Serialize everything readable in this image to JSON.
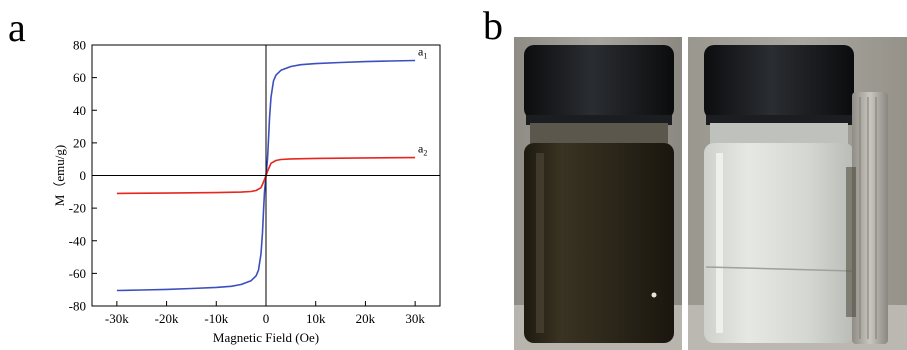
{
  "panel_a": {
    "label": "a"
  },
  "panel_b": {
    "label": "b"
  },
  "chart_data": {
    "type": "line",
    "xlabel": "Magnetic Field (Oe)",
    "ylabel": "M（emu/g)",
    "xlim": [
      -35000,
      35000
    ],
    "ylim": [
      -80,
      80
    ],
    "x_ticks": [
      -30000,
      -20000,
      -10000,
      0,
      10000,
      20000,
      30000
    ],
    "x_tick_labels": [
      "-30k",
      "-20k",
      "-10k",
      "0",
      "10k",
      "20k",
      "30k"
    ],
    "y_ticks": [
      -80,
      -60,
      -40,
      -20,
      0,
      20,
      40,
      60,
      80
    ],
    "y_tick_labels": [
      "-80",
      "-60",
      "-40",
      "-20",
      "0",
      "20",
      "40",
      "60",
      "80"
    ],
    "grid": false,
    "series": [
      {
        "name": "a1",
        "label_main": "a",
        "label_sub": "1",
        "color": "#3b4fbf",
        "x": [
          -30000,
          -25000,
          -20000,
          -15000,
          -10000,
          -7000,
          -5000,
          -3000,
          -2000,
          -1500,
          -1000,
          -700,
          -500,
          -300,
          0,
          300,
          500,
          700,
          1000,
          1500,
          2000,
          3000,
          5000,
          7000,
          10000,
          15000,
          20000,
          25000,
          30000
        ],
        "y": [
          -70.5,
          -70.2,
          -69.8,
          -69.3,
          -68.6,
          -67.9,
          -66.8,
          -64.5,
          -61.5,
          -58,
          -48,
          -35,
          -22,
          -10,
          0,
          10,
          22,
          35,
          48,
          58,
          61.5,
          64.5,
          66.8,
          67.9,
          68.6,
          69.3,
          69.8,
          70.2,
          70.5
        ]
      },
      {
        "name": "a2",
        "label_main": "a",
        "label_sub": "2",
        "color": "#e8261f",
        "x": [
          -30000,
          -20000,
          -10000,
          -5000,
          -3000,
          -2000,
          -1000,
          -500,
          0,
          500,
          1000,
          2000,
          3000,
          5000,
          10000,
          20000,
          30000
        ],
        "y": [
          -11,
          -10.8,
          -10.5,
          -10.2,
          -9.8,
          -9.2,
          -7.5,
          -4,
          0,
          4,
          7.5,
          9.2,
          9.8,
          10.2,
          10.5,
          10.8,
          11
        ]
      }
    ]
  },
  "photos": {
    "left": {
      "cap_color": "#15171a",
      "liquid_color": "#2a2418",
      "background": "#9a9890"
    },
    "right": {
      "cap_color": "#15171a",
      "liquid_color": "#d9dcd6",
      "background": "#a19e96",
      "magnet_color": "#b8b5ae"
    }
  }
}
